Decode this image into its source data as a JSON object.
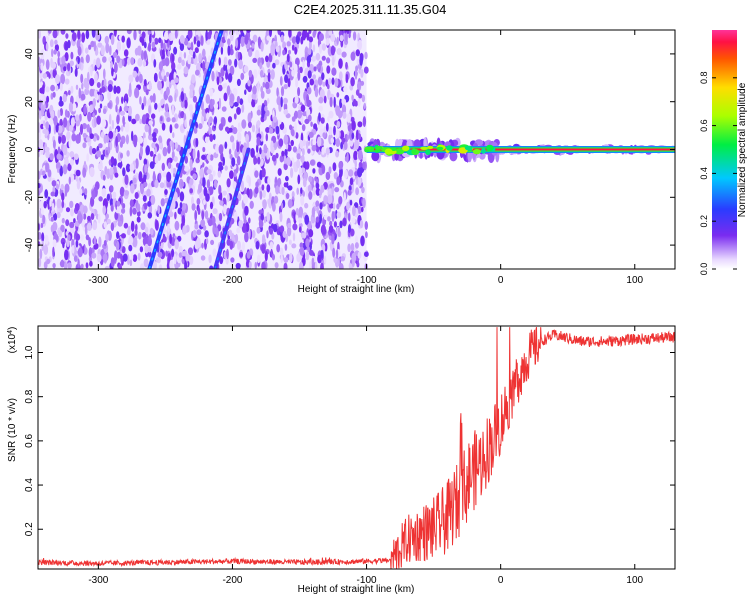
{
  "title": "C2E4.2025.311.11.35.G04",
  "chart_data": [
    {
      "type": "heatmap",
      "title": "C2E4.2025.311.11.35.G04",
      "xlabel": "Height of straight line (km)",
      "ylabel": "Frequency (Hz)",
      "xlim": [
        -345,
        130
      ],
      "ylim": [
        -50,
        50
      ],
      "x_ticks": [
        -300,
        -200,
        -100,
        0,
        100
      ],
      "x_tick_labels": [
        "-300",
        "-200",
        "-100",
        "0",
        "100"
      ],
      "y_ticks": [
        -40,
        -20,
        0,
        20,
        40
      ],
      "y_tick_labels": [
        "-40",
        "-20",
        "0",
        "20",
        "40"
      ],
      "noise_region": {
        "x_from": -345,
        "x_to": -100,
        "level": 0.15
      },
      "features": [
        {
          "name": "slanted trace A",
          "points": [
            [
              -262,
              -50
            ],
            [
              -235,
              0
            ],
            [
              -208,
              50
            ]
          ],
          "amplitude": 0.25
        },
        {
          "name": "slanted trace B",
          "points": [
            [
              -213,
              -50
            ],
            [
              -188,
              0
            ]
          ],
          "amplitude": 0.2
        },
        {
          "name": "carrier line",
          "x_from": -100,
          "x_to": 130,
          "frequency": 0,
          "amplitude": 0.95
        }
      ],
      "colorbar": {
        "label": "Normalized spectral amplitude",
        "range": [
          0,
          1
        ],
        "ticks": [
          0.0,
          0.2,
          0.4,
          0.6,
          0.8
        ],
        "tick_labels": [
          "0.0",
          "0.2",
          "0.4",
          "0.6",
          "0.8"
        ]
      }
    },
    {
      "type": "line",
      "xlabel": "Height of straight line (km)",
      "ylabel": "SNR (10 * v/v)",
      "y_exponent_label": "(x10",
      "y_exponent": "4",
      "y_exponent_close": ")",
      "xlim": [
        -345,
        130
      ],
      "ylim": [
        0.02,
        1.12
      ],
      "x_ticks": [
        -300,
        -200,
        -100,
        0,
        100
      ],
      "x_tick_labels": [
        "-300",
        "-200",
        "-100",
        "0",
        "100"
      ],
      "y_ticks": [
        0.2,
        0.4,
        0.6,
        0.8,
        1.0
      ],
      "y_tick_labels": [
        "0.2",
        "0.4",
        "0.6",
        "0.8",
        "1.0"
      ],
      "color": "#ee3333",
      "series": [
        {
          "name": "SNR",
          "x": [
            -345,
            -300,
            -250,
            -200,
            -150,
            -100,
            -82,
            -70,
            -60,
            -50,
            -40,
            -30,
            -22,
            -15,
            -8,
            0,
            10,
            20,
            30,
            40,
            60,
            80,
            100,
            130
          ],
          "values": [
            0.05,
            0.045,
            0.05,
            0.055,
            0.05,
            0.055,
            0.06,
            0.15,
            0.18,
            0.2,
            0.25,
            0.35,
            0.45,
            0.5,
            0.58,
            0.68,
            0.85,
            0.98,
            1.05,
            1.08,
            1.05,
            1.05,
            1.06,
            1.07
          ]
        }
      ]
    }
  ]
}
